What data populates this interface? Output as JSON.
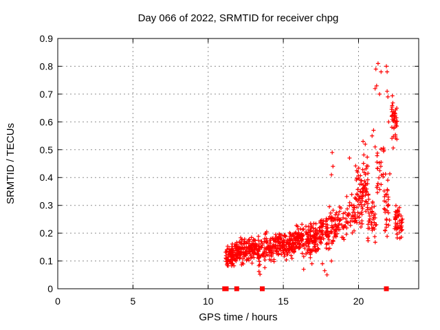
{
  "window": {
    "background": "#ffffff"
  },
  "chart_data": {
    "type": "scatter",
    "title": "Day 066 of 2022, SRMTID for receiver chpg",
    "xlabel": "GPS time / hours",
    "ylabel": "SRMTID / TECUs",
    "xlim": [
      0,
      24
    ],
    "ylim": [
      0,
      0.9
    ],
    "xticks": [
      0,
      5,
      10,
      15,
      20
    ],
    "yticks": [
      0,
      0.1,
      0.2,
      0.3,
      0.4,
      0.5,
      0.6,
      0.7,
      0.8,
      0.9
    ],
    "grid": true,
    "legend": "none",
    "marker": {
      "shape": "plus",
      "color": "#ff0000",
      "size": 7
    },
    "colors": {
      "axis": "#000000",
      "grid": "#8c8c8c",
      "text": "#000000",
      "background": "#ffffff"
    },
    "baseline_markers": {
      "shape": "square",
      "color": "#ff0000",
      "size": 7,
      "y": 0,
      "x": [
        11.1,
        11.2,
        11.9,
        13.6,
        21.85
      ]
    },
    "clusters": [
      {
        "x0": 11.15,
        "x1": 11.6,
        "y0": 0.07,
        "y1": 0.16,
        "n": 45
      },
      {
        "x0": 11.5,
        "x1": 12.0,
        "y0": 0.07,
        "y1": 0.18,
        "n": 55
      },
      {
        "x0": 12.0,
        "x1": 12.6,
        "y0": 0.08,
        "y1": 0.19,
        "n": 60
      },
      {
        "x0": 12.6,
        "x1": 13.2,
        "y0": 0.08,
        "y1": 0.2,
        "n": 55
      },
      {
        "x0": 13.2,
        "x1": 13.8,
        "y0": 0.07,
        "y1": 0.2,
        "n": 50
      },
      {
        "x0": 13.8,
        "x1": 14.4,
        "y0": 0.09,
        "y1": 0.21,
        "n": 55
      },
      {
        "x0": 14.4,
        "x1": 15.0,
        "y0": 0.1,
        "y1": 0.21,
        "n": 55
      },
      {
        "x0": 15.0,
        "x1": 15.6,
        "y0": 0.1,
        "y1": 0.22,
        "n": 60
      },
      {
        "x0": 15.6,
        "x1": 16.2,
        "y0": 0.11,
        "y1": 0.23,
        "n": 60
      },
      {
        "x0": 16.2,
        "x1": 16.8,
        "y0": 0.11,
        "y1": 0.24,
        "n": 60
      },
      {
        "x0": 16.8,
        "x1": 17.4,
        "y0": 0.12,
        "y1": 0.25,
        "n": 55
      },
      {
        "x0": 17.4,
        "x1": 18.0,
        "y0": 0.13,
        "y1": 0.27,
        "n": 55
      },
      {
        "x0": 18.0,
        "x1": 18.6,
        "y0": 0.14,
        "y1": 0.3,
        "n": 50
      },
      {
        "x0": 18.6,
        "x1": 19.2,
        "y0": 0.16,
        "y1": 0.3,
        "n": 30
      },
      {
        "x0": 19.2,
        "x1": 19.8,
        "y0": 0.18,
        "y1": 0.36,
        "n": 35
      },
      {
        "x0": 19.8,
        "x1": 20.3,
        "y0": 0.2,
        "y1": 0.45,
        "n": 45
      },
      {
        "x0": 20.2,
        "x1": 20.7,
        "y0": 0.22,
        "y1": 0.5,
        "n": 45
      },
      {
        "x0": 20.6,
        "x1": 21.2,
        "y0": 0.15,
        "y1": 0.35,
        "n": 35
      },
      {
        "x0": 21.2,
        "x1": 21.7,
        "y0": 0.3,
        "y1": 0.55,
        "n": 25
      },
      {
        "x0": 21.7,
        "x1": 22.1,
        "y0": 0.15,
        "y1": 0.45,
        "n": 30
      },
      {
        "x0": 22.2,
        "x1": 22.6,
        "y0": 0.5,
        "y1": 0.72,
        "n": 40
      },
      {
        "x0": 22.4,
        "x1": 22.95,
        "y0": 0.17,
        "y1": 0.31,
        "n": 45
      }
    ],
    "outliers": [
      [
        13.38,
        0.062
      ],
      [
        13.45,
        0.052
      ],
      [
        16.35,
        0.07
      ],
      [
        16.9,
        0.09
      ],
      [
        17.6,
        0.09
      ],
      [
        17.75,
        0.065
      ],
      [
        17.9,
        0.05
      ],
      [
        18.2,
        0.1
      ],
      [
        18.2,
        0.41
      ],
      [
        18.25,
        0.49
      ],
      [
        18.3,
        0.44
      ],
      [
        19.4,
        0.47
      ],
      [
        20.3,
        0.53
      ],
      [
        20.45,
        0.52
      ],
      [
        20.9,
        0.55
      ],
      [
        21.0,
        0.57
      ],
      [
        21.1,
        0.51
      ],
      [
        21.1,
        0.72
      ],
      [
        21.15,
        0.79
      ],
      [
        21.2,
        0.73
      ],
      [
        21.3,
        0.81
      ],
      [
        21.4,
        0.7
      ],
      [
        21.5,
        0.78
      ],
      [
        21.85,
        0.8
      ],
      [
        21.9,
        0.71
      ],
      [
        21.9,
        0.78
      ],
      [
        21.95,
        0.69
      ],
      [
        22.0,
        0.6
      ]
    ]
  }
}
